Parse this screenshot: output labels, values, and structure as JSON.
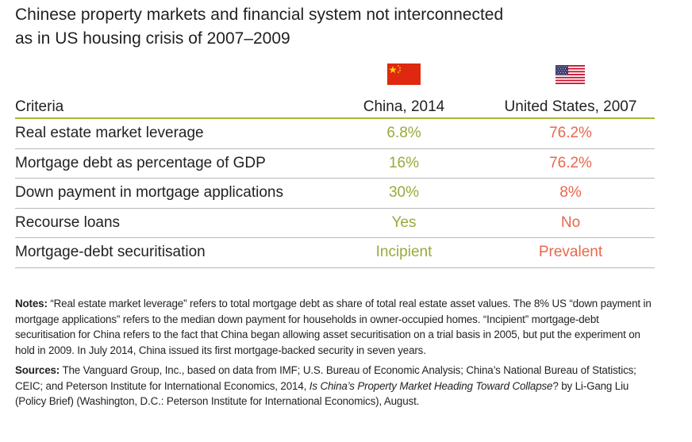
{
  "title": {
    "line1": "Chinese property markets and financial system not interconnected",
    "line2": "as in US housing crisis of 2007–2009"
  },
  "colors": {
    "china_accent": "#9aa93a",
    "us_accent": "#e8674e",
    "header_rule": "#a9b53a",
    "row_rule": "#b9b9b9",
    "text": "#231f20"
  },
  "flags": {
    "china": "china-flag-icon",
    "us": "us-flag-icon"
  },
  "table": {
    "headers": {
      "criteria": "Criteria",
      "china": "China, 2014",
      "us": "United States, 2007"
    },
    "rows": [
      {
        "criteria": "Real estate market leverage",
        "china": "6.8%",
        "us": "76.2%"
      },
      {
        "criteria": "Mortgage debt as percentage of GDP",
        "china": "16%",
        "us": "76.2%"
      },
      {
        "criteria": "Down payment in mortgage applications",
        "china": "30%",
        "us": "8%"
      },
      {
        "criteria": "Recourse loans",
        "china": "Yes",
        "us": "No"
      },
      {
        "criteria": "Mortgage-debt securitisation",
        "china": "Incipient",
        "us": "Prevalent"
      }
    ]
  },
  "notes": {
    "label": "Notes:",
    "text": "“Real estate market leverage” refers to total mortgage debt as share of total real estate asset values. The 8% US “down payment in mortgage applications” refers to the median down payment for households in owner-occupied homes. “Incipient” mortgage-debt securitisation for China refers to the fact that China began allowing asset securitisation on a trial basis in 2005, but put the experiment on hold in 2009. In July 2014, China issued its first mortgage-backed security in seven years."
  },
  "sources": {
    "label": "Sources:",
    "text_before": "The Vanguard Group, Inc., based on data from IMF; U.S. Bureau of Economic Analysis; China’s National Bureau of Statistics; CEIC; and Peterson Institute for International Economics, 2014, ",
    "italic_title": "Is China’s Property Market Heading Toward Collapse",
    "text_after": "? by Li-Gang Liu (Policy Brief) (Washington, D.C.: Peterson Institute for International Economics), August."
  }
}
